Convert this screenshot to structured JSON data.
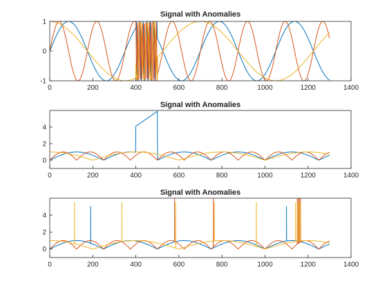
{
  "chart_data": [
    {
      "type": "line",
      "title": "Signal with Anomalies",
      "xlim": [
        0,
        1400
      ],
      "ylim": [
        -1,
        1
      ],
      "xticks": [
        0,
        200,
        400,
        600,
        800,
        1000,
        1200,
        1400
      ],
      "yticks": [
        -1,
        0,
        1
      ],
      "grid": false,
      "series": [
        {
          "color": "#0072BD",
          "x": [
            0,
            1300
          ],
          "signal": "sin",
          "period": 350,
          "anomalies": [
            {
              "type": "high_frequency",
              "x_range": [
                400,
                500
              ]
            }
          ]
        },
        {
          "color": "#D95319",
          "x": [
            0,
            1300
          ],
          "signal": "sin",
          "period": 175,
          "anomalies": [
            {
              "type": "high_frequency",
              "x_range": [
                400,
                500
              ]
            }
          ]
        },
        {
          "color": "#EDB120",
          "x": [
            0,
            1300
          ],
          "signal": "cos",
          "period": 700,
          "anomalies": [
            {
              "type": "high_frequency",
              "x_range": [
                400,
                500
              ]
            }
          ]
        }
      ]
    },
    {
      "type": "line",
      "title": "Signal with Anomalies",
      "xlim": [
        0,
        1400
      ],
      "ylim": [
        -1,
        6
      ],
      "xticks": [
        0,
        200,
        400,
        600,
        800,
        1000,
        1200,
        1400
      ],
      "yticks": [
        0,
        2,
        4
      ],
      "grid": false,
      "series": [
        {
          "color": "#0072BD",
          "x": [
            0,
            1300
          ],
          "signal": "|sin|",
          "period": 500,
          "anomalies": [
            {
              "type": "ramp",
              "x_range": [
                400,
                500
              ],
              "y_range": [
                4.1,
                5.9
              ]
            }
          ]
        },
        {
          "color": "#D95319",
          "x": [
            0,
            1300
          ],
          "signal": "|sin|",
          "period": 250,
          "anomalies": []
        },
        {
          "color": "#EDB120",
          "x": [
            0,
            1300
          ],
          "signal": "|cos|",
          "period": 800,
          "anomalies": []
        }
      ]
    },
    {
      "type": "line",
      "title": "Signal with Anomalies",
      "xlim": [
        0,
        1400
      ],
      "ylim": [
        -1,
        6
      ],
      "xticks": [
        0,
        200,
        400,
        600,
        800,
        1000,
        1200,
        1400
      ],
      "yticks": [
        0,
        2,
        4
      ],
      "grid": false,
      "series": [
        {
          "color": "#0072BD",
          "x": [
            0,
            1300
          ],
          "signal": "|sin|",
          "period": 500,
          "anomalies": [
            {
              "type": "spikes",
              "x": [
                190,
                1100
              ],
              "y": 5.0
            }
          ]
        },
        {
          "color": "#D95319",
          "x": [
            0,
            1300
          ],
          "signal": "|sin|",
          "period": 250,
          "anomalies": [
            {
              "type": "spikes",
              "x": [
                580,
                760,
                1150,
                1155,
                1160,
                1165
              ],
              "y": 6.0
            }
          ]
        },
        {
          "color": "#EDB120",
          "x": [
            0,
            1300
          ],
          "signal": "|cos|",
          "period": 800,
          "anomalies": [
            {
              "type": "spikes",
              "x": [
                115,
                335,
                585,
                765,
                960,
                1142,
                1150,
                1158,
                1166
              ],
              "y": 5.5
            }
          ]
        }
      ]
    }
  ]
}
